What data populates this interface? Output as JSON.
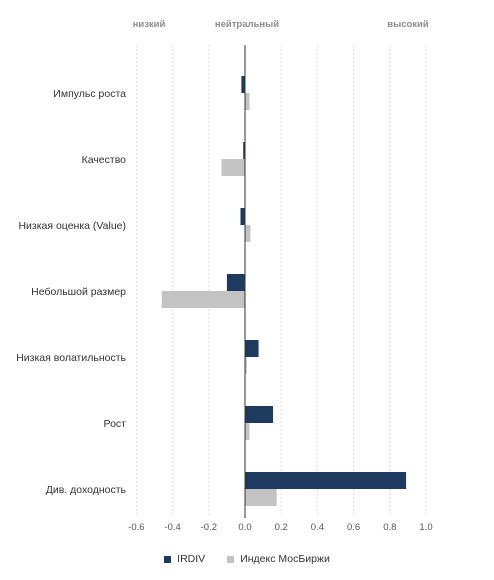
{
  "chart_data": {
    "type": "bar",
    "orientation": "horizontal",
    "top_labels": [
      "низкий",
      "нейтральный",
      "высокий"
    ],
    "categories": [
      "Импульс роста",
      "Качество",
      "Низкая оценка (Value)",
      "Небольшой размер",
      "Низкая волатильность",
      "Рост",
      "Див. доходность"
    ],
    "series": [
      {
        "name": "IRDIV",
        "color": "#1f3a5f",
        "values": [
          -0.02,
          -0.01,
          -0.025,
          -0.1,
          0.075,
          0.155,
          0.89
        ]
      },
      {
        "name": "Индекс МосБиржи",
        "color": "#c3c3c3",
        "values": [
          0.025,
          -0.13,
          0.03,
          -0.46,
          0.01,
          0.025,
          0.175
        ]
      }
    ],
    "xlim": [
      -0.65,
      1.0
    ],
    "xticks": [
      "-0.6",
      "-0.4",
      "-0.2",
      "0.0",
      "0.2",
      "0.4",
      "0.6",
      "0.8",
      "1.0"
    ],
    "xtick_values": [
      -0.6,
      -0.4,
      -0.2,
      0.0,
      0.2,
      0.4,
      0.6,
      0.8,
      1.0
    ],
    "grid": true,
    "legend_position": "bottom"
  }
}
